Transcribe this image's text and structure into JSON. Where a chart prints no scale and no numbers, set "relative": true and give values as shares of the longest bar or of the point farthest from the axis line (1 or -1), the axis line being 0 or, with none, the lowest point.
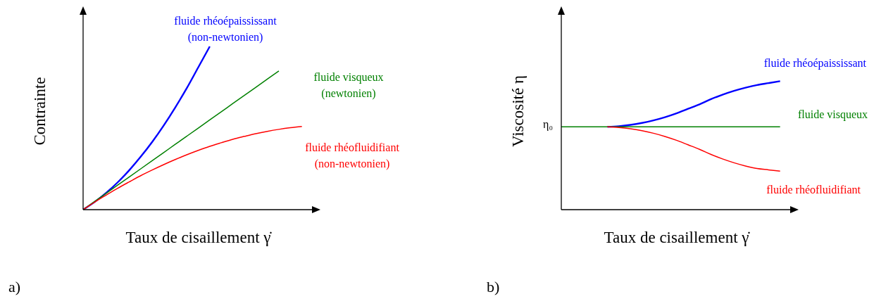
{
  "chart_data": [
    {
      "type": "line",
      "title": "a)",
      "xlabel": "Taux de cisaillement γ̇",
      "ylabel": "Contrainte",
      "relative": true,
      "categories": [
        null,
        null,
        null,
        null,
        null,
        null,
        null,
        null,
        null,
        null,
        null,
        null,
        null,
        null,
        null,
        null,
        null,
        null,
        null,
        null
      ],
      "series": [
        {
          "name": "fluide rhéoépaississant (non-newtonien)",
          "color": "#0000ff",
          "values": [
            0,
            0.047,
            0.103,
            0.167,
            0.241,
            0.324,
            0.415,
            0.516,
            0.626,
            0.744,
            0.872,
            1,
            null,
            null,
            null,
            null,
            null,
            null,
            null,
            null
          ]
        },
        {
          "name": "fluide visqueux (newtonien)",
          "color": "#008000",
          "values": [
            0,
            0.05,
            0.1,
            0.15,
            0.2,
            0.25,
            0.3,
            0.35,
            0.4,
            0.45,
            0.5,
            0.55,
            0.6,
            0.65,
            0.7,
            0.75,
            0.8,
            0.85,
            null,
            null
          ]
        },
        {
          "name": "fluide rhéofluidifiant (non-newtonien)",
          "color": "#ff0000",
          "values": [
            0,
            0.046,
            0.089,
            0.131,
            0.17,
            0.208,
            0.243,
            0.276,
            0.307,
            0.336,
            0.363,
            0.388,
            0.41,
            0.431,
            0.449,
            0.466,
            0.48,
            0.492,
            0.502,
            0.51
          ]
        }
      ]
    },
    {
      "type": "line",
      "title": "b)",
      "xlabel": "Taux de cisaillement γ̇",
      "ylabel": "Viscosité η",
      "relative": true,
      "annotations": [
        "η₀"
      ],
      "categories": [
        null,
        null,
        null,
        null,
        null,
        null,
        null,
        null,
        null,
        null,
        null,
        null,
        null,
        null,
        null,
        null,
        null,
        null,
        null,
        null
      ],
      "series": [
        {
          "name": "fluide rhéoépaississant",
          "color": "#0000ff",
          "values": [
            null,
            null,
            null,
            null,
            0.645,
            0.65,
            0.66,
            0.675,
            0.695,
            0.72,
            0.75,
            0.785,
            0.82,
            0.86,
            0.895,
            0.925,
            0.95,
            0.97,
            0.985,
            1
          ]
        },
        {
          "name": "fluide visqueux",
          "color": "#008000",
          "values": [
            0.645,
            0.645,
            0.645,
            0.645,
            0.645,
            0.645,
            0.645,
            0.645,
            0.645,
            0.645,
            0.645,
            0.645,
            0.645,
            0.645,
            0.645,
            0.645,
            0.645,
            0.645,
            0.645,
            0.645
          ]
        },
        {
          "name": "fluide rhéofluidifiant",
          "color": "#ff0000",
          "values": [
            null,
            null,
            null,
            null,
            0.645,
            0.64,
            0.63,
            0.615,
            0.595,
            0.57,
            0.54,
            0.505,
            0.47,
            0.43,
            0.395,
            0.365,
            0.34,
            0.32,
            0.31,
            0.3
          ]
        }
      ]
    }
  ]
}
